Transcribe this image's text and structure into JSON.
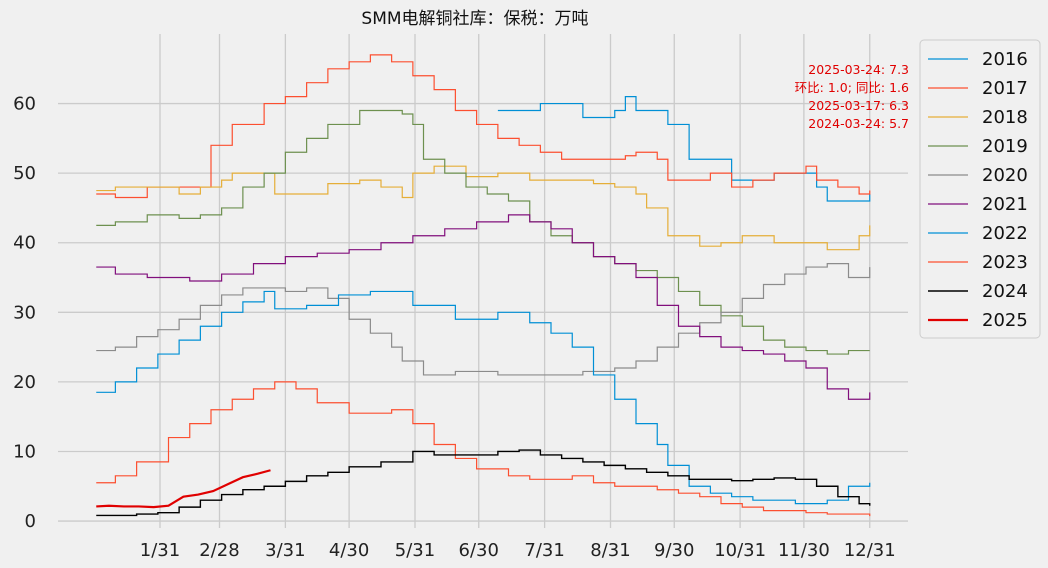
{
  "chart_data": {
    "type": "line",
    "title": "SMM电解铜社库：保税：万吨",
    "xlabel": "",
    "ylabel": "",
    "xlim": [
      1,
      365
    ],
    "ylim": [
      -1,
      70
    ],
    "x_ticks": [
      {
        "day": 31,
        "label": "1/31"
      },
      {
        "day": 59,
        "label": "2/28"
      },
      {
        "day": 90,
        "label": "3/31"
      },
      {
        "day": 120,
        "label": "4/30"
      },
      {
        "day": 151,
        "label": "5/31"
      },
      {
        "day": 181,
        "label": "6/30"
      },
      {
        "day": 212,
        "label": "7/31"
      },
      {
        "day": 243,
        "label": "8/31"
      },
      {
        "day": 273,
        "label": "9/30"
      },
      {
        "day": 304,
        "label": "10/31"
      },
      {
        "day": 334,
        "label": "11/30"
      },
      {
        "day": 365,
        "label": "12/31"
      }
    ],
    "y_ticks": [
      0,
      10,
      20,
      30,
      40,
      50,
      60
    ],
    "grid": true,
    "legend_position": "outside-right",
    "annotation": {
      "position": "top-right",
      "lines": [
        "2025-03-24: 7.3",
        "环比: 1.0; 同比: 1.6",
        "2025-03-17: 6.3",
        "2024-03-24: 5.7"
      ]
    },
    "series": [
      {
        "name": "2016",
        "color": "#008fd5",
        "width": 1.2,
        "step": true,
        "x": [
          190,
          210,
          230,
          245,
          250,
          255,
          270,
          280,
          290,
          300,
          320,
          340,
          345,
          350,
          360,
          365
        ],
        "y": [
          59,
          60,
          58,
          59,
          61,
          59,
          57,
          52,
          52,
          49,
          50,
          48,
          46,
          46,
          46,
          47
        ]
      },
      {
        "name": "2017",
        "color": "#fc4f30",
        "width": 1.2,
        "step": true,
        "x": [
          1,
          10,
          25,
          40,
          45,
          55,
          65,
          80,
          90,
          100,
          110,
          120,
          130,
          140,
          150,
          160,
          170,
          180,
          190,
          200,
          210,
          220,
          230,
          240,
          250,
          255,
          265,
          270,
          280,
          290,
          300,
          310,
          320,
          330,
          335,
          340,
          350,
          360,
          365
        ],
        "y": [
          47,
          46.5,
          48,
          48,
          48,
          54,
          57,
          60,
          61,
          63,
          65,
          66,
          67,
          66,
          64,
          62,
          59,
          57,
          55,
          54,
          53,
          52,
          52,
          52,
          52.5,
          53,
          52,
          49,
          49,
          50,
          48,
          49,
          50,
          50,
          51,
          49,
          48,
          47,
          47.5
        ]
      },
      {
        "name": "2018",
        "color": "#e5ae38",
        "width": 1.2,
        "step": true,
        "x": [
          1,
          10,
          25,
          40,
          50,
          60,
          65,
          70,
          85,
          95,
          110,
          125,
          135,
          145,
          150,
          160,
          175,
          190,
          205,
          215,
          225,
          235,
          245,
          255,
          260,
          270,
          285,
          295,
          305,
          320,
          330,
          345,
          360,
          365
        ],
        "y": [
          47.5,
          48,
          48,
          47,
          48,
          49,
          50,
          50,
          47,
          47,
          48.5,
          49,
          48,
          46.5,
          50,
          51,
          49.5,
          50,
          49,
          49,
          49,
          48.5,
          48,
          47,
          45,
          41,
          39.5,
          40,
          41,
          40,
          40,
          39,
          41,
          42.5
        ]
      },
      {
        "name": "2019",
        "color": "#6d904f",
        "width": 1.2,
        "step": true,
        "x": [
          1,
          10,
          25,
          40,
          50,
          60,
          70,
          80,
          90,
          100,
          110,
          125,
          135,
          145,
          150,
          155,
          165,
          175,
          185,
          195,
          205,
          215,
          225,
          235,
          245,
          255,
          265,
          275,
          285,
          295,
          305,
          315,
          325,
          335,
          345,
          355,
          365
        ],
        "y": [
          42.5,
          43,
          44,
          43.5,
          44,
          45,
          48,
          50,
          53,
          55,
          57,
          59,
          59,
          58.5,
          57,
          52,
          50,
          48,
          47,
          46,
          43,
          41,
          40,
          38,
          37,
          36,
          35,
          33,
          31,
          29.5,
          28,
          26,
          25,
          24.5,
          24,
          24.5,
          24.5
        ]
      },
      {
        "name": "2020",
        "color": "#8b8b8b",
        "width": 1.2,
        "step": true,
        "x": [
          1,
          10,
          20,
          30,
          40,
          50,
          60,
          70,
          80,
          90,
          100,
          110,
          120,
          130,
          140,
          145,
          155,
          170,
          190,
          210,
          230,
          245,
          255,
          265,
          275,
          285,
          295,
          305,
          315,
          325,
          335,
          345,
          355,
          365
        ],
        "y": [
          24.5,
          25,
          26.5,
          27.5,
          29,
          31,
          32.5,
          33.5,
          33.5,
          33,
          33.5,
          32,
          29,
          27,
          25,
          23,
          21,
          21.5,
          21,
          21,
          21.5,
          22,
          23,
          25,
          27,
          28.5,
          30,
          32,
          34,
          35.5,
          36.5,
          37,
          35,
          36.5
        ]
      },
      {
        "name": "2021",
        "color": "#810f7c",
        "width": 1.2,
        "step": true,
        "x": [
          1,
          10,
          25,
          35,
          45,
          60,
          75,
          90,
          105,
          120,
          135,
          150,
          165,
          180,
          195,
          205,
          215,
          225,
          235,
          245,
          255,
          265,
          275,
          285,
          295,
          305,
          315,
          325,
          335,
          345,
          355,
          365
        ],
        "y": [
          36.5,
          35.5,
          35,
          35,
          34.5,
          35.5,
          37,
          38,
          38.5,
          39,
          40,
          41,
          42,
          43,
          44,
          43,
          42,
          40,
          38,
          37,
          35,
          31,
          28,
          26.5,
          25,
          24.5,
          24,
          23,
          22,
          19,
          17.5,
          18.5
        ]
      },
      {
        "name": "2022",
        "color": "#008fd5",
        "width": 1.2,
        "step": true,
        "x": [
          1,
          10,
          20,
          30,
          40,
          50,
          60,
          70,
          80,
          85,
          100,
          115,
          130,
          150,
          170,
          190,
          205,
          215,
          225,
          235,
          245,
          255,
          265,
          270,
          280,
          290,
          300,
          310,
          320,
          330,
          345,
          355,
          365
        ],
        "y": [
          18.5,
          20,
          22,
          24,
          26,
          28,
          30,
          31.5,
          33,
          30.5,
          31,
          32.5,
          33,
          31,
          29,
          30,
          28.5,
          27,
          25,
          21,
          17.5,
          14,
          11,
          8,
          5,
          4,
          3.5,
          3,
          3,
          2.5,
          3,
          5,
          5.5
        ]
      },
      {
        "name": "2023",
        "color": "#fc4f30",
        "width": 1.2,
        "step": true,
        "x": [
          1,
          10,
          20,
          35,
          45,
          55,
          65,
          75,
          85,
          95,
          105,
          120,
          140,
          150,
          160,
          170,
          180,
          195,
          205,
          215,
          225,
          235,
          245,
          255,
          265,
          275,
          285,
          295,
          305,
          315,
          325,
          335,
          345,
          355,
          365
        ],
        "y": [
          5.5,
          6.5,
          8.5,
          12,
          14,
          16,
          17.5,
          19,
          20,
          19,
          17,
          15.5,
          16,
          14,
          11,
          9,
          7.5,
          6.5,
          6,
          6,
          6.5,
          5.5,
          5,
          5,
          4.5,
          4,
          3.5,
          2.5,
          2,
          1.5,
          1.5,
          1.2,
          1,
          1,
          0.7
        ]
      },
      {
        "name": "2024",
        "color": "#000000",
        "width": 1.4,
        "step": true,
        "x": [
          1,
          20,
          30,
          40,
          50,
          60,
          70,
          80,
          90,
          100,
          110,
          120,
          135,
          150,
          160,
          175,
          190,
          200,
          210,
          220,
          230,
          240,
          250,
          260,
          270,
          280,
          290,
          300,
          310,
          320,
          330,
          340,
          350,
          360,
          365
        ],
        "y": [
          0.8,
          1,
          1.2,
          2,
          3,
          3.8,
          4.5,
          5,
          5.7,
          6.5,
          7,
          7.8,
          8.5,
          10,
          9.5,
          9.5,
          10,
          10.2,
          9.5,
          9,
          8.5,
          8,
          7.5,
          7,
          6.5,
          6,
          6,
          5.8,
          6,
          6.2,
          6,
          5,
          3.5,
          2.5,
          2.2
        ]
      },
      {
        "name": "2025",
        "color": "#e00000",
        "width": 2.2,
        "step": false,
        "x": [
          1,
          7,
          14,
          21,
          28,
          35,
          42,
          49,
          56,
          63,
          70,
          77,
          83
        ],
        "y": [
          2.1,
          2.2,
          2.1,
          2.1,
          2.0,
          2.2,
          3.5,
          3.8,
          4.3,
          5.3,
          6.3,
          6.8,
          7.3
        ]
      }
    ]
  }
}
